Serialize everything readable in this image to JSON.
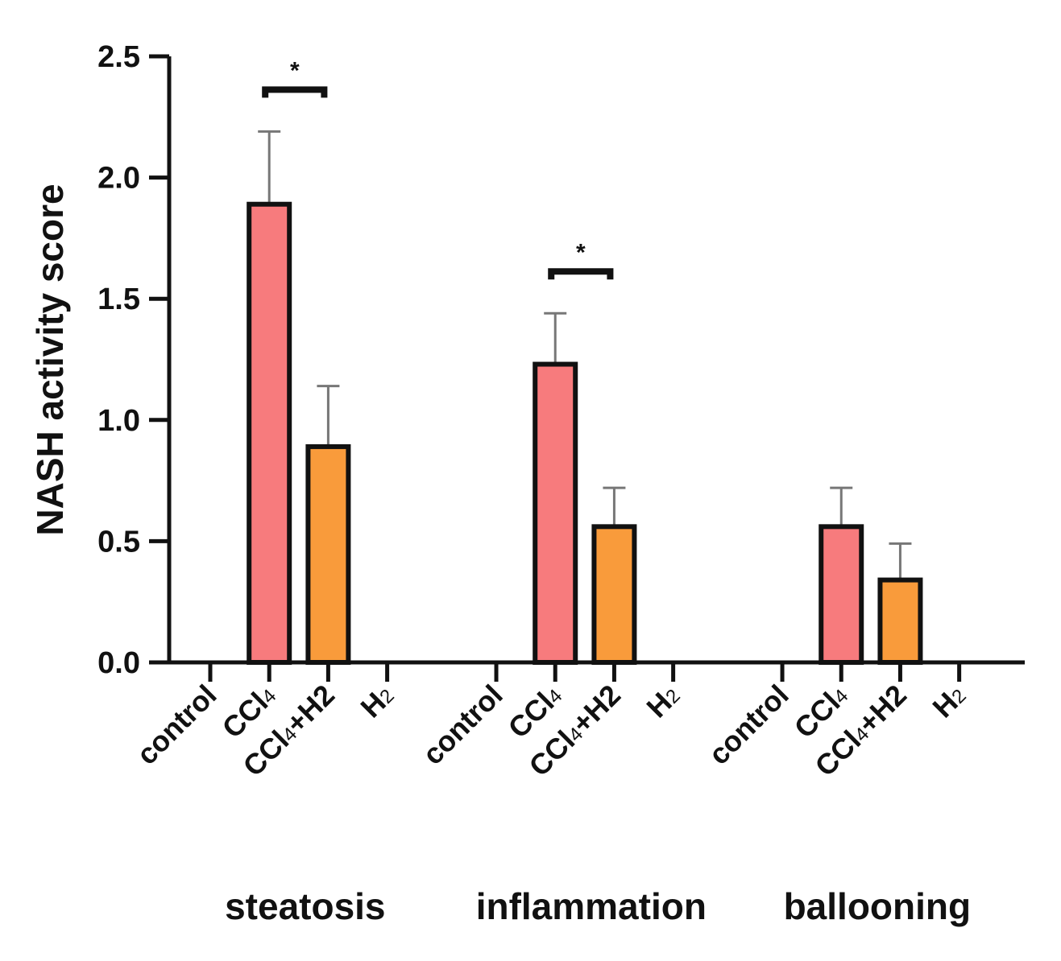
{
  "chart_data": {
    "type": "bar",
    "title": "",
    "xlabel": "",
    "ylabel": "NASH activity score",
    "ylim": [
      0,
      2.5
    ],
    "yticks": [
      "0.0",
      "0.5",
      "1.0",
      "1.5",
      "2.0",
      "2.5"
    ],
    "groups": [
      {
        "name": "steatosis",
        "categories": [
          {
            "main": "control",
            "sub": "",
            "post": ""
          },
          {
            "main": "CCl",
            "sub": "4",
            "post": ""
          },
          {
            "main": "CCl",
            "sub": "4",
            "post": "+H2"
          },
          {
            "main": "H",
            "sub": "2",
            "post": ""
          }
        ]
      },
      {
        "name": "inflammation",
        "categories": [
          {
            "main": "control",
            "sub": "",
            "post": ""
          },
          {
            "main": "CCl",
            "sub": "4",
            "post": ""
          },
          {
            "main": "CCl",
            "sub": "4",
            "post": "+H2"
          },
          {
            "main": "H",
            "sub": "2",
            "post": ""
          }
        ]
      },
      {
        "name": "ballooning",
        "categories": [
          {
            "main": "control",
            "sub": "",
            "post": ""
          },
          {
            "main": "CCl",
            "sub": "4",
            "post": ""
          },
          {
            "main": "CCl",
            "sub": "4",
            "post": "+H2"
          },
          {
            "main": "H",
            "sub": "2",
            "post": ""
          }
        ]
      }
    ],
    "series": [
      {
        "name": "control",
        "color": "#ffffff",
        "values": [
          0,
          0,
          0
        ],
        "errors": [
          0,
          0,
          0
        ]
      },
      {
        "name": "CCl4",
        "color": "#f77b7d",
        "values": [
          1.89,
          1.23,
          0.56
        ],
        "errors": [
          0.3,
          0.21,
          0.16
        ]
      },
      {
        "name": "CCl4+H2",
        "color": "#f99b3b",
        "values": [
          0.89,
          0.56,
          0.34
        ],
        "errors": [
          0.25,
          0.16,
          0.15
        ]
      },
      {
        "name": "H2",
        "color": "#ffffff",
        "values": [
          0,
          0,
          0
        ],
        "errors": [
          0,
          0,
          0
        ]
      }
    ],
    "significance": [
      {
        "group": 0,
        "from": 1,
        "to": 2,
        "label": "*"
      },
      {
        "group": 1,
        "from": 1,
        "to": 2,
        "label": "*"
      }
    ]
  }
}
